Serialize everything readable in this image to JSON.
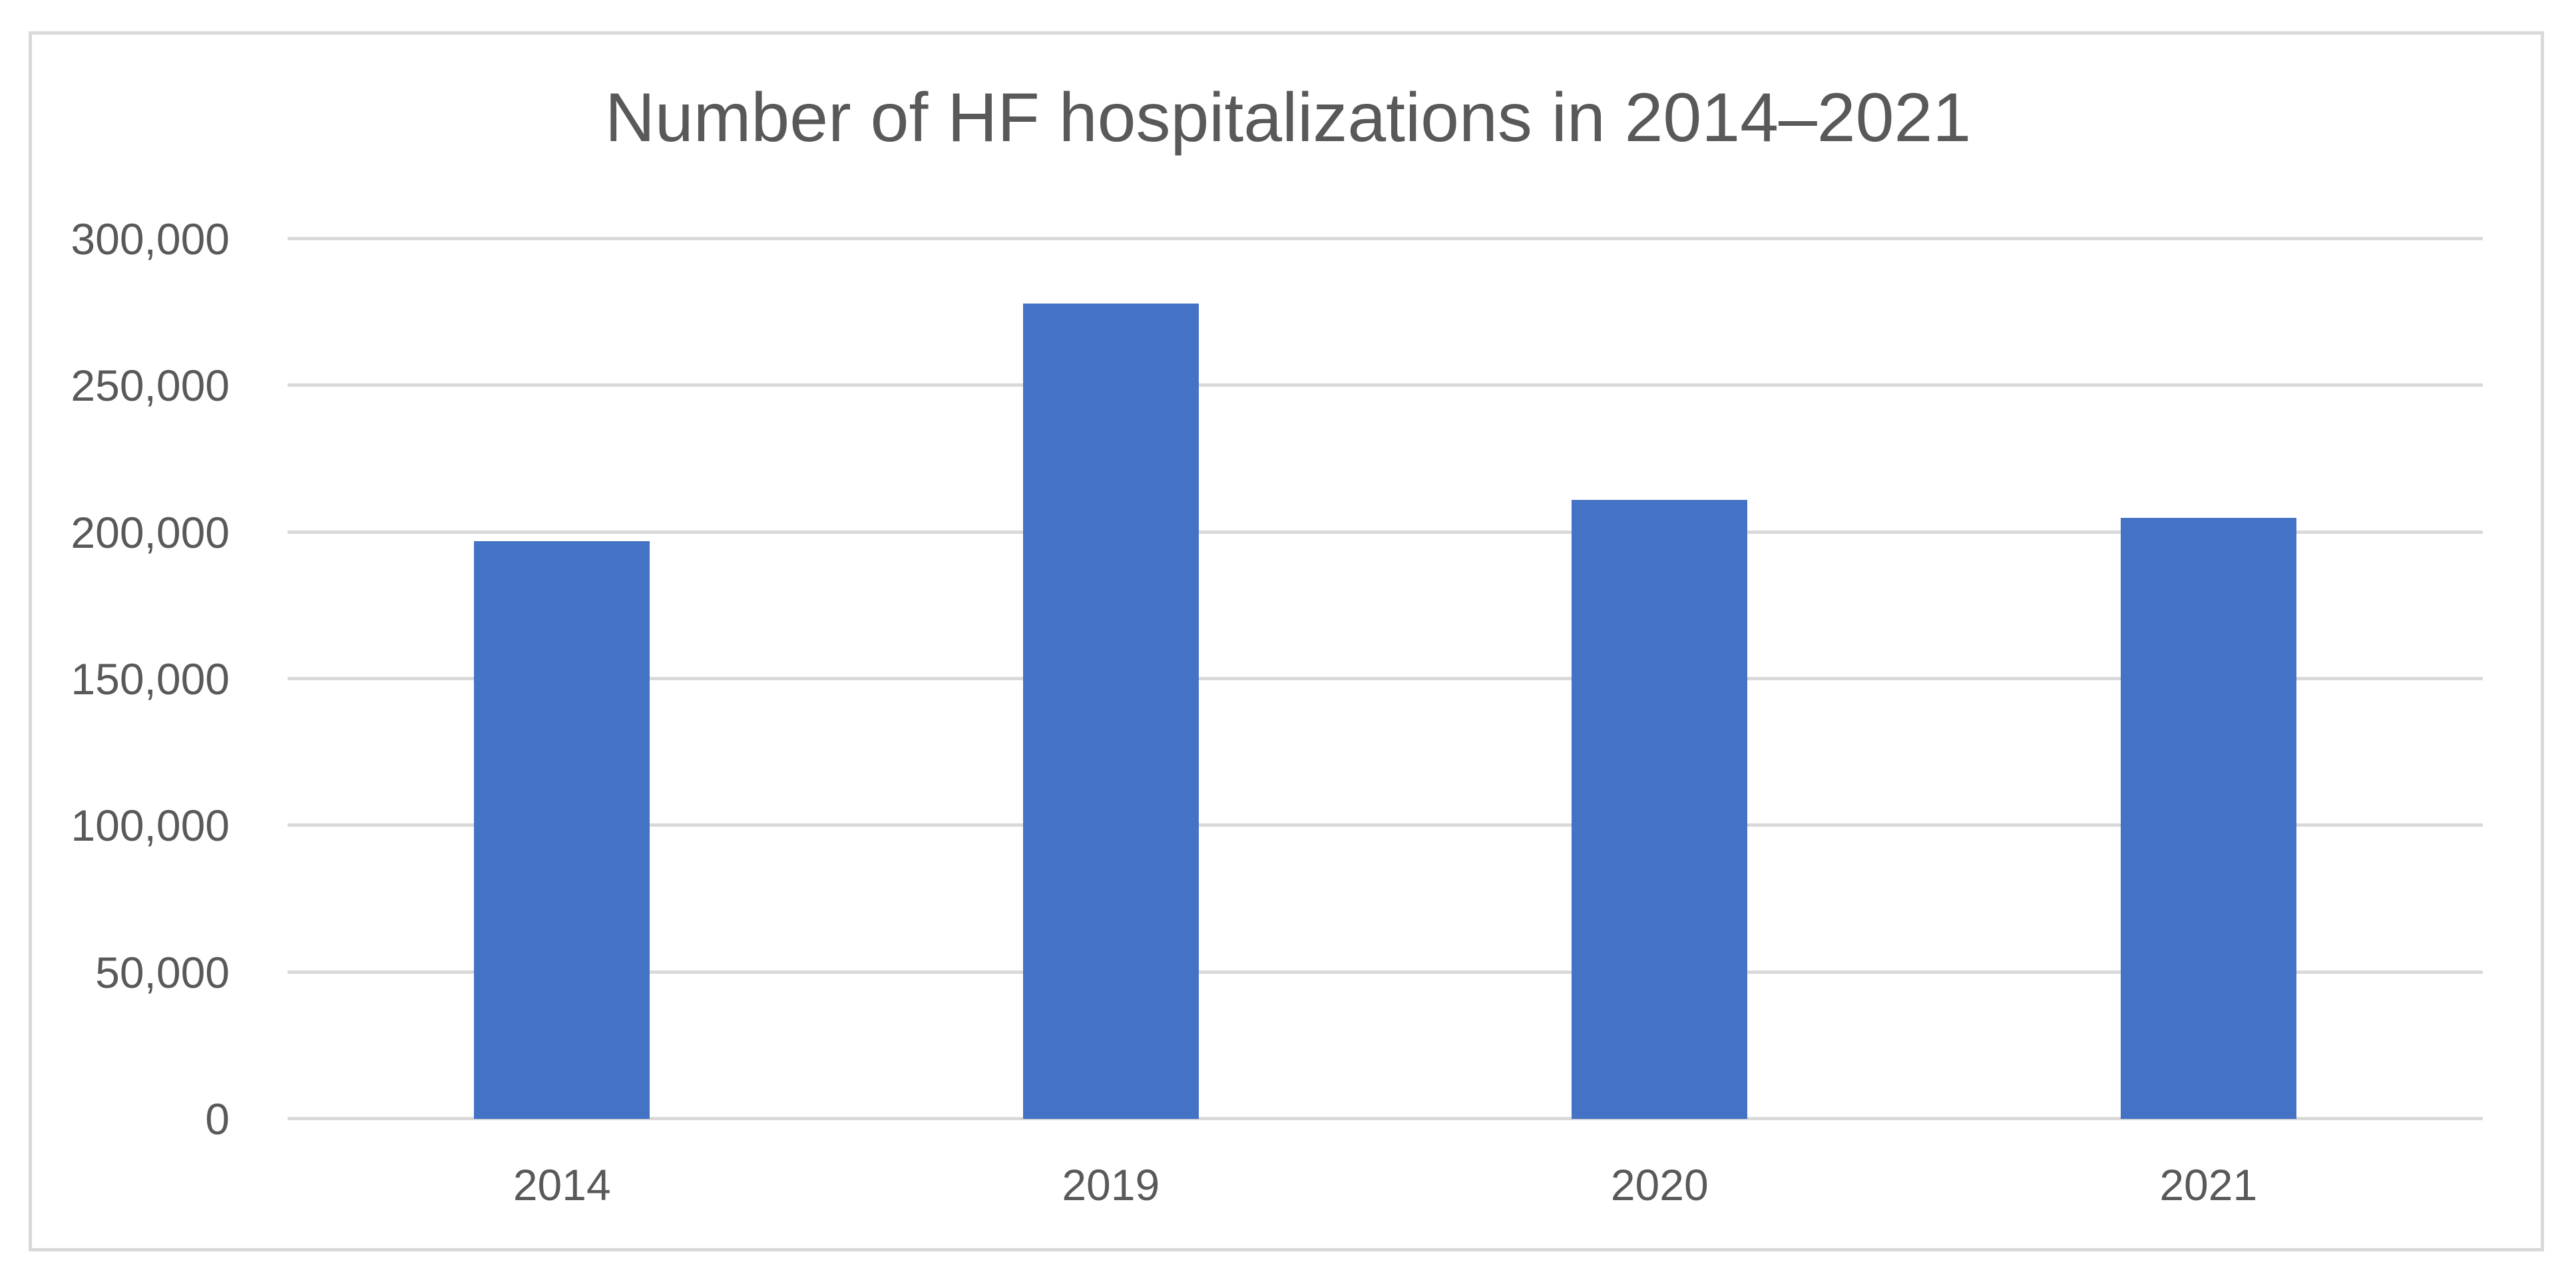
{
  "chart_data": {
    "type": "bar",
    "title": "Number of HF hospitalizations in 2014–2021",
    "categories": [
      "2014",
      "2019",
      "2020",
      "2021"
    ],
    "values": [
      197000,
      278000,
      211000,
      205000
    ],
    "xlabel": "",
    "ylabel": "",
    "ylim": [
      0,
      300000
    ],
    "ytick_step": 50000,
    "ytick_labels": [
      "0",
      "50,000",
      "100,000",
      "150,000",
      "200,000",
      "250,000",
      "300,000"
    ],
    "grid": "horizontal",
    "legend_position": "none",
    "data_labels": "none",
    "colors": {
      "bar_fill": "#4472C4",
      "gridline": "#D9D9D9",
      "axis_line": "#D9D9D9",
      "text": "#595959",
      "frame_border": "#D9D9D9",
      "background": "#FFFFFF"
    }
  }
}
